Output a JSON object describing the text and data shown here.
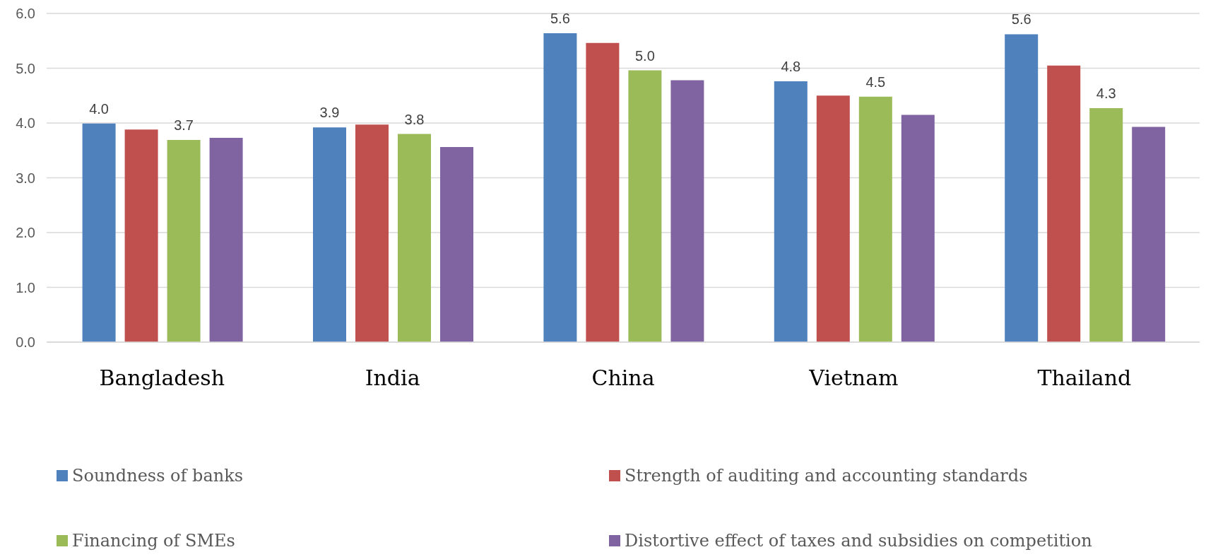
{
  "chart_data": {
    "type": "bar",
    "categories": [
      "Bangladesh",
      "India",
      "China",
      "Vietnam",
      "Thailand"
    ],
    "series": [
      {
        "name": "Soundness of banks",
        "color": "#4f81bd",
        "values": [
          3.99,
          3.92,
          5.64,
          4.76,
          5.62
        ],
        "value_labels": [
          "4.0",
          "3.9",
          "5.6",
          "4.8",
          "5.6"
        ]
      },
      {
        "name": "Strength of auditing and accounting standards",
        "color": "#c0504d",
        "values": [
          3.88,
          3.97,
          5.46,
          4.5,
          5.05
        ]
      },
      {
        "name": "Financing of SMEs",
        "color": "#9bbb59",
        "values": [
          3.69,
          3.8,
          4.96,
          4.48,
          4.27
        ],
        "value_labels": [
          "3.7",
          "3.8",
          "5.0",
          "4.5",
          "4.3"
        ]
      },
      {
        "name": "Distortive effect of taxes and subsidies on competition",
        "color": "#8064a2",
        "values": [
          3.73,
          3.56,
          4.78,
          4.15,
          3.93
        ]
      }
    ],
    "ylim": [
      0,
      6
    ],
    "yticks": [
      {
        "value": 0,
        "label": "0.0"
      },
      {
        "value": 1,
        "label": "1.0"
      },
      {
        "value": 2,
        "label": "2.0"
      },
      {
        "value": 3,
        "label": "3.0"
      },
      {
        "value": 4,
        "label": "4.0"
      },
      {
        "value": 5,
        "label": "5.0"
      },
      {
        "value": 6,
        "label": "6.0"
      }
    ],
    "grid": "y",
    "legend": "bottom"
  }
}
